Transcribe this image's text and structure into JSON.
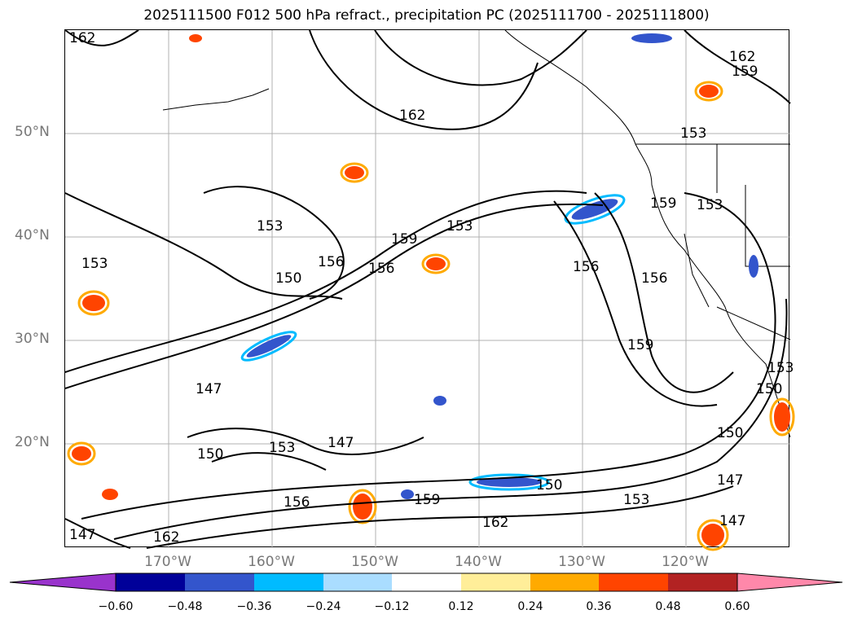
{
  "title": "2025111500 F012 500 hPa refract., precipitation PC (2025111700 - 2025111800)",
  "map": {
    "lat_labels": [
      "50°N",
      "40°N",
      "30°N",
      "20°N"
    ],
    "lon_labels": [
      "170°W",
      "160°W",
      "150°W",
      "140°W",
      "130°W",
      "120°W"
    ],
    "contour_labels": [
      "162",
      "162",
      "159",
      "162",
      "153",
      "153",
      "150",
      "156",
      "159",
      "153",
      "156",
      "156",
      "153",
      "159",
      "156",
      "153",
      "159",
      "147",
      "150",
      "153",
      "147",
      "150",
      "156",
      "159",
      "150",
      "153",
      "162",
      "147",
      "162",
      "147",
      "147",
      "153",
      "150"
    ],
    "line_color": "#000000",
    "grid_color": "#b0b0b0"
  },
  "colorbar": {
    "ticks": [
      "−0.60",
      "−0.48",
      "−0.36",
      "−0.24",
      "−0.12",
      "0.12",
      "0.24",
      "0.36",
      "0.48",
      "0.60"
    ],
    "colors": [
      "#9933cc",
      "#000099",
      "#3355cc",
      "#00bbff",
      "#aaddff",
      "#ffffff",
      "#ffee99",
      "#ffaa00",
      "#ff4400",
      "#b22222",
      "#ff88aa"
    ]
  }
}
